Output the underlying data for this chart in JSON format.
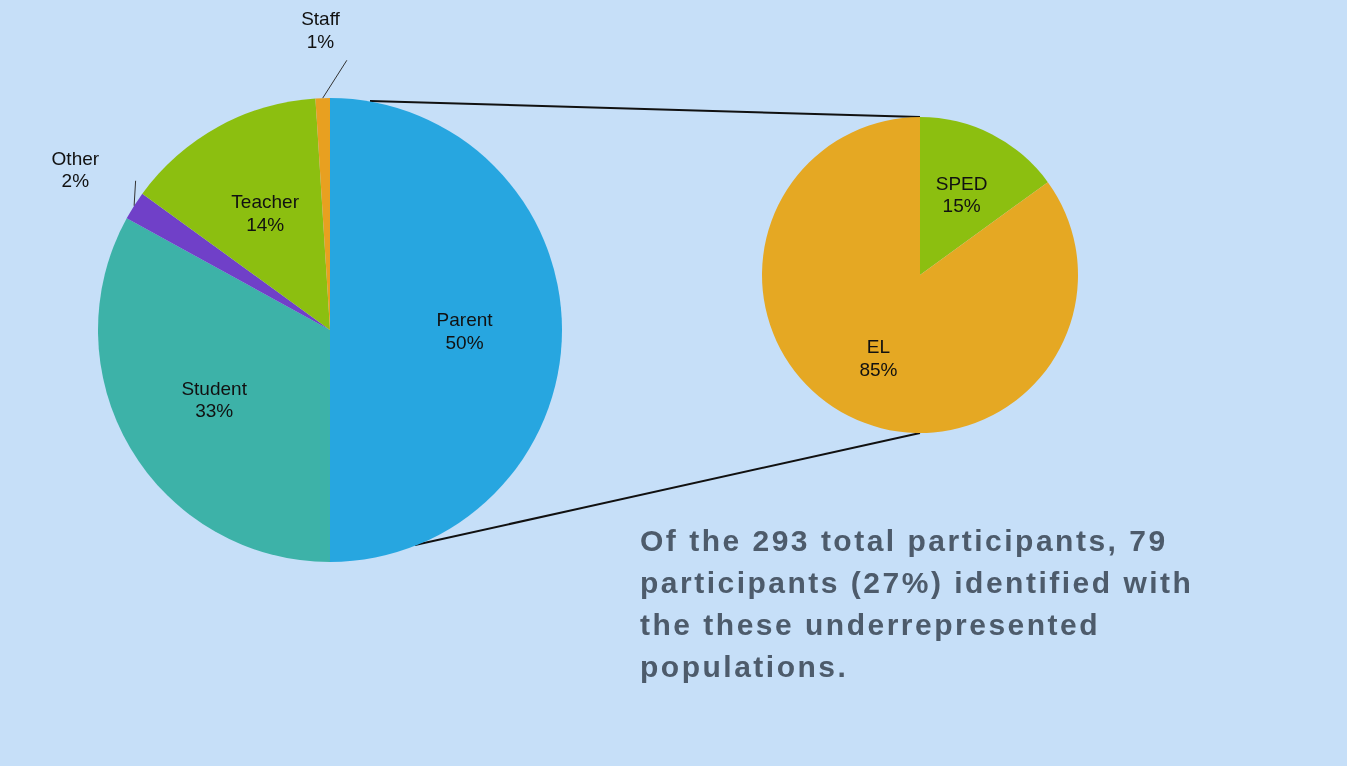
{
  "chart_data": [
    {
      "type": "pie",
      "categories": [
        "Parent",
        "Student",
        "Other",
        "Teacher",
        "Staff"
      ],
      "values": [
        50,
        33,
        2,
        14,
        1
      ],
      "colors": [
        "#27a6e0",
        "#3db2a8",
        "#7040c8",
        "#8cbf10",
        "#e8a020"
      ],
      "value_labels": [
        "50%",
        "33%",
        "2%",
        "14%",
        "1%"
      ]
    },
    {
      "type": "pie",
      "categories": [
        "SPED",
        "EL"
      ],
      "values": [
        15,
        85
      ],
      "colors": [
        "#8cbf10",
        "#e5a823"
      ],
      "value_labels": [
        "15%",
        "85%"
      ],
      "annotations": [
        "Of the 293 total participants, 79 participants (27%) identified with the these underrepresented populations."
      ]
    }
  ]
}
